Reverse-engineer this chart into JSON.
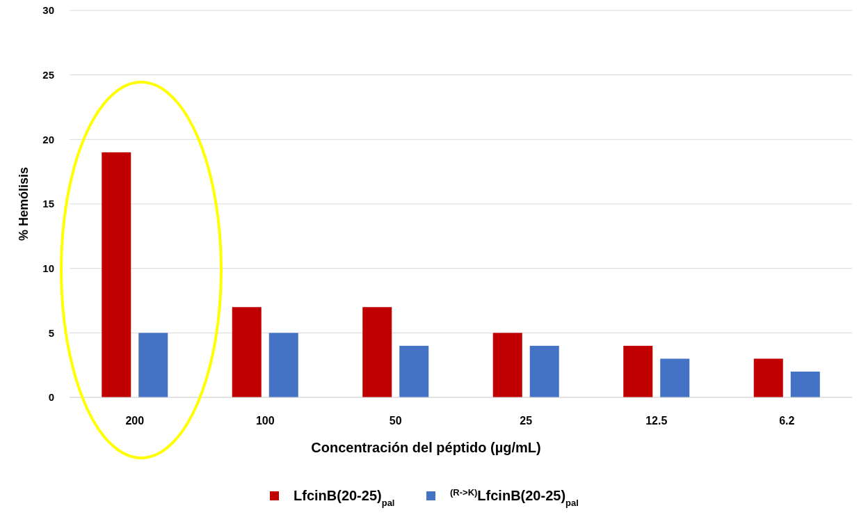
{
  "chart_data": {
    "type": "bar",
    "xlabel": "Concentración del péptido (µg/mL)",
    "ylabel": "% Hemólisis",
    "categories": [
      "200",
      "100",
      "50",
      "25",
      "12.5",
      "6.2"
    ],
    "series": [
      {
        "name": "LfcinB(20-25)$_{pal}$",
        "color": "#c00000",
        "values": [
          19,
          7,
          7,
          5,
          4,
          3
        ]
      },
      {
        "name": "$^{(R->K)}$LfcinB(20-25)$_{pal}$",
        "color": "#4472c4",
        "values": [
          5,
          5,
          4,
          4,
          3,
          2
        ]
      }
    ],
    "ylim": [
      0,
      30
    ],
    "yticks": [
      0,
      5,
      10,
      15,
      20,
      25,
      30
    ],
    "grid": "y",
    "legend": "bottom"
  }
}
